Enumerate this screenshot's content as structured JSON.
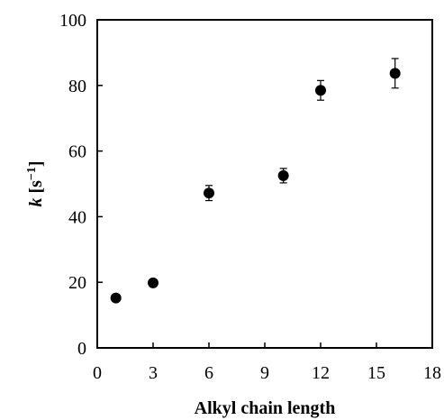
{
  "chart_data": {
    "type": "scatter",
    "xlabel": "Alkyl chain length",
    "ylabel_var": "k",
    "ylabel_unit": " [s",
    "ylabel_sup": "−1",
    "ylabel_close": "]",
    "xlim": [
      0,
      18
    ],
    "ylim": [
      0,
      100
    ],
    "xticks": [
      0,
      3,
      6,
      9,
      12,
      15,
      18
    ],
    "yticks": [
      0,
      20,
      40,
      60,
      80,
      100
    ],
    "grid": false,
    "marker_color": "#000000",
    "points": [
      {
        "x": 1,
        "y": 15.2,
        "err": 0.8
      },
      {
        "x": 3,
        "y": 19.8,
        "err": 0.6
      },
      {
        "x": 6,
        "y": 47.2,
        "err": 2.3
      },
      {
        "x": 10,
        "y": 52.5,
        "err": 2.2
      },
      {
        "x": 12,
        "y": 78.5,
        "err": 3.0
      },
      {
        "x": 16,
        "y": 83.7,
        "err": 4.5
      }
    ]
  }
}
